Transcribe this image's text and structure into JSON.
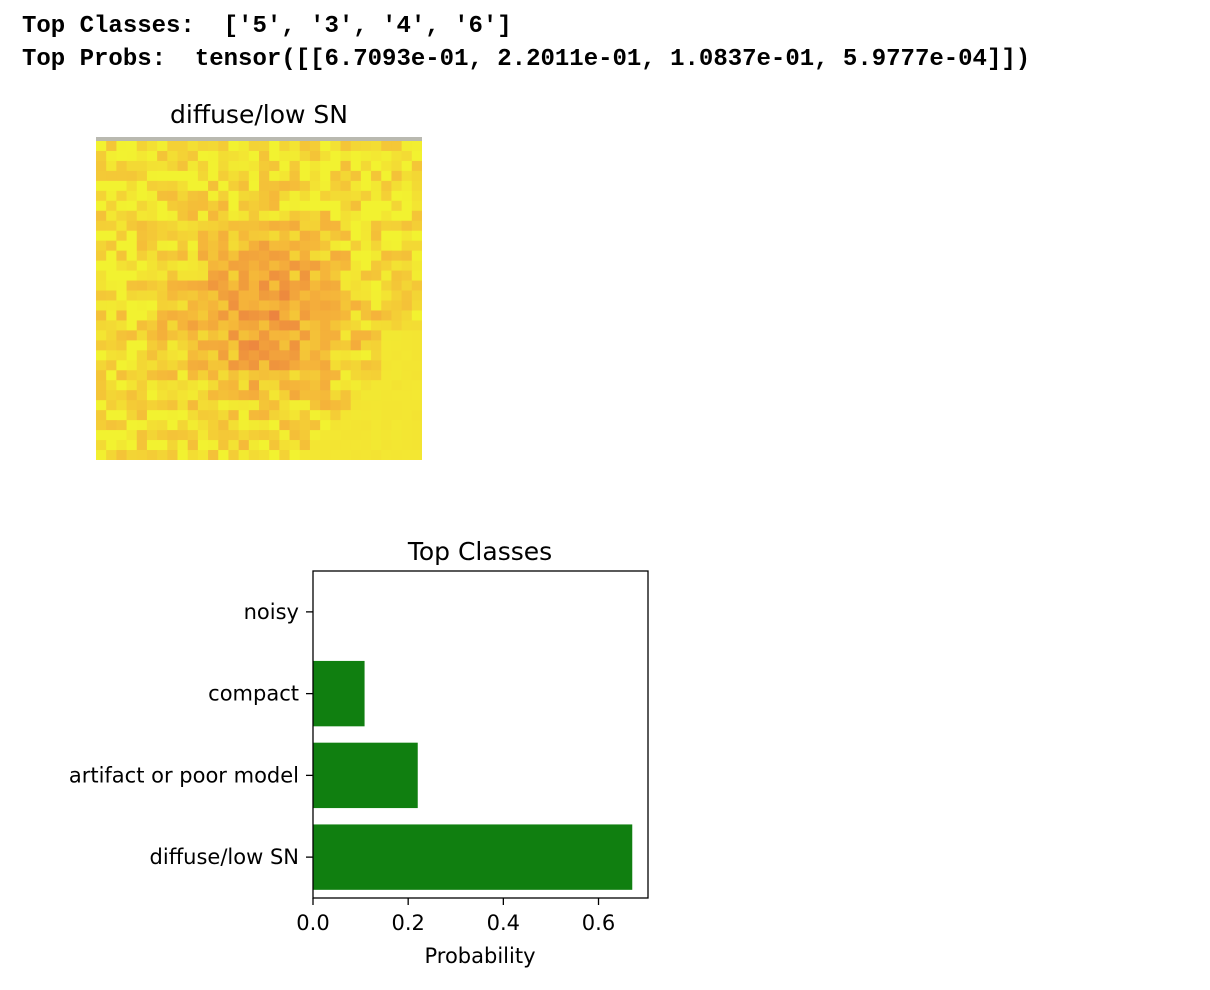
{
  "console": {
    "classes_line": "Top Classes:  ['5', '3', '4', '6']",
    "probs_line": "Top Probs:  tensor([[6.7093e-01, 2.2011e-01, 1.0837e-01, 5.9777e-04]])"
  },
  "image_panel": {
    "title": "diffuse/low SN",
    "colormap": {
      "low": "#f2f230",
      "mid": "#f5b43a",
      "high": "#ea7a40"
    }
  },
  "chart_data": {
    "type": "bar",
    "orientation": "horizontal",
    "title": "Top Classes",
    "xlabel": "Probability",
    "ylabel": "",
    "categories": [
      "diffuse/low SN",
      "artifact or poor model",
      "compact",
      "noisy"
    ],
    "values": [
      0.67093,
      0.22011,
      0.10837,
      0.00059777
    ],
    "xlim": [
      0,
      0.704
    ],
    "xticks": [
      0.0,
      0.2,
      0.4,
      0.6
    ],
    "xtick_labels": [
      "0.0",
      "0.2",
      "0.4",
      "0.6"
    ],
    "grid": false,
    "bar_color": "#107f10"
  }
}
